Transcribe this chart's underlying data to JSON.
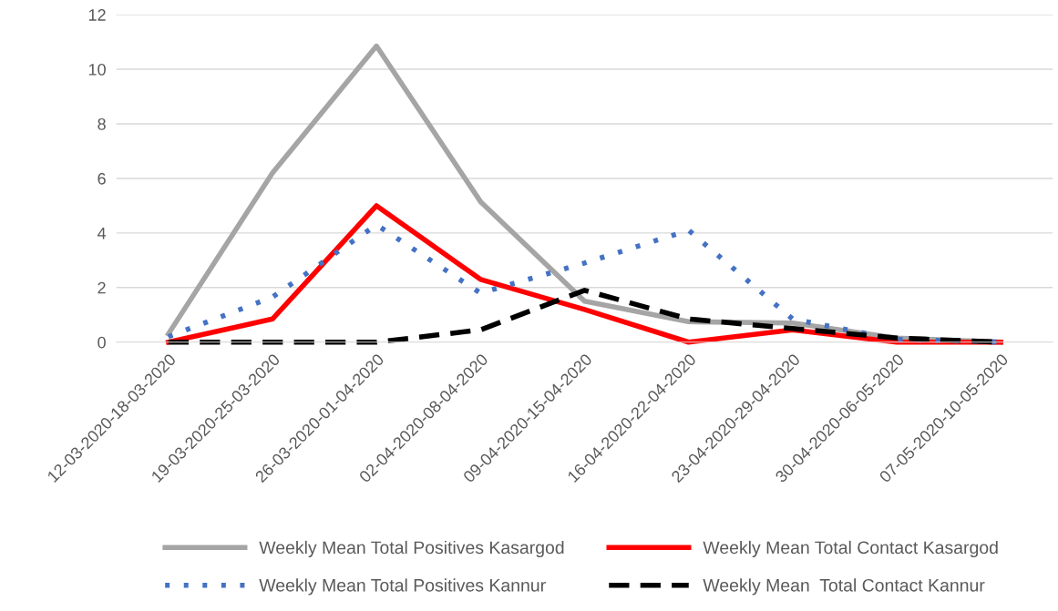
{
  "chart_data": {
    "type": "line",
    "categories": [
      "12-03-2020-18-03-2020",
      "19-03-2020-25-03-2020",
      "26-03-2020-01-04-2020",
      "02-04-2020-08-04-2020",
      "09-04-2020-15-04-2020",
      "16-04-2020-22-04-2020",
      "23-04-2020-29-04-2020",
      "30-04-2020-06-05-2020",
      "07-05-2020-10-05-2020"
    ],
    "series": [
      {
        "name": "Weekly Mean Total Positives Kasargod",
        "color": "#a5a5a5",
        "line_style": "solid",
        "values": [
          0.3,
          6.2,
          10.85,
          5.15,
          1.5,
          0.75,
          0.7,
          0.15,
          0
        ]
      },
      {
        "name": "Weekly Mean Total Contact Kasargod",
        "color": "#ff0000",
        "line_style": "solid",
        "values": [
          0,
          0.85,
          5.0,
          2.3,
          1.2,
          0,
          0.45,
          0,
          0
        ]
      },
      {
        "name": "Weekly Mean Total Positives Kannur",
        "color": "#4472c4",
        "line_style": "dotted",
        "values": [
          0.2,
          1.65,
          4.3,
          1.8,
          2.9,
          4.1,
          0.85,
          0.1,
          0
        ]
      },
      {
        "name": "Weekly Mean  Total Contact Kannur",
        "color": "#000000",
        "line_style": "dashed",
        "values": [
          0,
          0,
          0,
          0.45,
          1.9,
          0.85,
          0.5,
          0.15,
          0
        ]
      }
    ],
    "ylim": [
      0,
      12
    ],
    "yticks": [
      0,
      2,
      4,
      6,
      8,
      10,
      12
    ],
    "grid": "y",
    "legend": "bottom",
    "marker": "none"
  }
}
